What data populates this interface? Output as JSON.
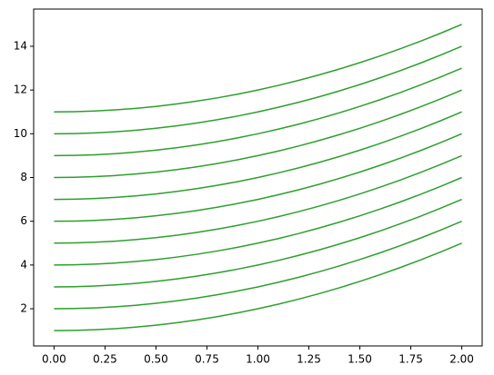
{
  "chart_data": {
    "type": "line",
    "x": [
      0,
      0.1,
      0.2,
      0.3,
      0.4,
      0.5,
      0.6,
      0.7,
      0.8,
      0.9,
      1,
      1.1,
      1.2,
      1.3,
      1.4,
      1.5,
      1.6,
      1.7,
      1.8,
      1.9,
      2
    ],
    "series": [
      {
        "color": "#2ca02c",
        "values": [
          1,
          1.01,
          1.04,
          1.09,
          1.16,
          1.25,
          1.36,
          1.49,
          1.64,
          1.81,
          2,
          2.21,
          2.44,
          2.69,
          2.96,
          3.25,
          3.56,
          3.89,
          4.24,
          4.61,
          5
        ]
      },
      {
        "color": "#2ca02c",
        "values": [
          2,
          2.01,
          2.04,
          2.09,
          2.16,
          2.25,
          2.36,
          2.49,
          2.64,
          2.81,
          3,
          3.21,
          3.44,
          3.69,
          3.96,
          4.25,
          4.56,
          4.89,
          5.24,
          5.61,
          6
        ]
      },
      {
        "color": "#2ca02c",
        "values": [
          3,
          3.01,
          3.04,
          3.09,
          3.16,
          3.25,
          3.36,
          3.49,
          3.64,
          3.81,
          4,
          4.21,
          4.44,
          4.69,
          4.96,
          5.25,
          5.56,
          5.89,
          6.24,
          6.61,
          7
        ]
      },
      {
        "color": "#2ca02c",
        "values": [
          4,
          4.01,
          4.04,
          4.09,
          4.16,
          4.25,
          4.36,
          4.49,
          4.64,
          4.81,
          5,
          5.21,
          5.44,
          5.69,
          5.96,
          6.25,
          6.56,
          6.89,
          7.24,
          7.61,
          8
        ]
      },
      {
        "color": "#2ca02c",
        "values": [
          5,
          5.01,
          5.04,
          5.09,
          5.16,
          5.25,
          5.36,
          5.49,
          5.64,
          5.81,
          6,
          6.21,
          6.44,
          6.69,
          6.96,
          7.25,
          7.56,
          7.89,
          8.24,
          8.61,
          9
        ]
      },
      {
        "color": "#2ca02c",
        "values": [
          6,
          6.01,
          6.04,
          6.09,
          6.16,
          6.25,
          6.36,
          6.49,
          6.64,
          6.81,
          7,
          7.21,
          7.44,
          7.69,
          7.96,
          8.25,
          8.56,
          8.89,
          9.24,
          9.61,
          10
        ]
      },
      {
        "color": "#2ca02c",
        "values": [
          7,
          7.01,
          7.04,
          7.09,
          7.16,
          7.25,
          7.36,
          7.49,
          7.64,
          7.81,
          8,
          8.21,
          8.44,
          8.69,
          8.96,
          9.25,
          9.56,
          9.89,
          10.24,
          10.61,
          11
        ]
      },
      {
        "color": "#2ca02c",
        "values": [
          8,
          8.01,
          8.04,
          8.09,
          8.16,
          8.25,
          8.36,
          8.49,
          8.64,
          8.81,
          9,
          9.21,
          9.44,
          9.69,
          9.96,
          10.25,
          10.56,
          10.89,
          11.24,
          11.61,
          12
        ]
      },
      {
        "color": "#2ca02c",
        "values": [
          9,
          9.01,
          9.04,
          9.09,
          9.16,
          9.25,
          9.36,
          9.49,
          9.64,
          9.81,
          10,
          10.21,
          10.44,
          10.69,
          10.96,
          11.25,
          11.56,
          11.89,
          12.24,
          12.61,
          13
        ]
      },
      {
        "color": "#2ca02c",
        "values": [
          10,
          10.01,
          10.04,
          10.09,
          10.16,
          10.25,
          10.36,
          10.49,
          10.64,
          10.81,
          11,
          11.21,
          11.44,
          11.69,
          11.96,
          12.25,
          12.56,
          12.89,
          13.24,
          13.61,
          14
        ]
      },
      {
        "color": "#2ca02c",
        "values": [
          11,
          11.01,
          11.04,
          11.09,
          11.16,
          11.25,
          11.36,
          11.49,
          11.64,
          11.81,
          12,
          12.21,
          12.44,
          12.69,
          12.96,
          13.25,
          13.56,
          13.89,
          14.24,
          14.61,
          15
        ]
      }
    ],
    "xlim": [
      -0.1,
      2.1
    ],
    "xticks": [
      {
        "value": 0,
        "label": "0.00"
      },
      {
        "value": 0.25,
        "label": "0.25"
      },
      {
        "value": 0.5,
        "label": "0.50"
      },
      {
        "value": 0.75,
        "label": "0.75"
      },
      {
        "value": 1,
        "label": "1.00"
      },
      {
        "value": 1.25,
        "label": "1.25"
      },
      {
        "value": 1.5,
        "label": "1.50"
      },
      {
        "value": 1.75,
        "label": "1.75"
      },
      {
        "value": 2,
        "label": "2.00"
      }
    ],
    "ylim": [
      0.3,
      15.7
    ],
    "yticks": [
      2,
      4,
      6,
      8,
      10,
      12,
      14
    ],
    "grid": false
  }
}
